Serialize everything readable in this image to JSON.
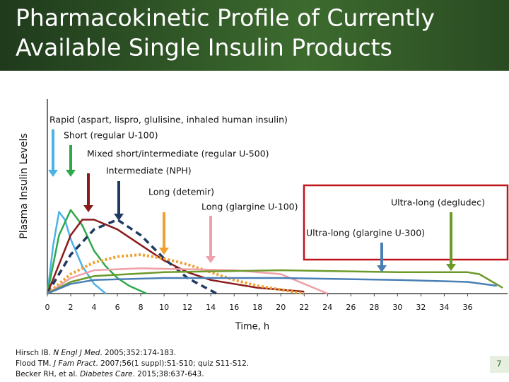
{
  "chart_data": {
    "type": "line",
    "title": [
      "Pharmacokinetic Profile of Currently",
      "Available Single Insulin Products"
    ],
    "y_label": "Plasma Insulin Levels",
    "x_label": "Time, h",
    "xlim": [
      0,
      39
    ],
    "ylim": [
      0,
      100
    ],
    "xticks": [
      0,
      2,
      4,
      6,
      8,
      10,
      12,
      14,
      16,
      18,
      20,
      22,
      24,
      26,
      28,
      30,
      32,
      34,
      36
    ],
    "series": [
      {
        "name": "Rapid (aspart, lispro, glulisine, inhaled human insulin)",
        "color": "#4cb3e6",
        "dash": "solid",
        "x": [
          0,
          0.5,
          1,
          1.5,
          2,
          3,
          4,
          5
        ],
        "values": [
          0,
          25,
          42,
          38,
          28,
          14,
          5,
          0
        ]
      },
      {
        "name": "Short (regular U-100)",
        "color": "#2ea84a",
        "dash": "solid",
        "x": [
          0,
          1,
          2,
          3,
          4,
          5,
          6,
          7,
          8.5
        ],
        "values": [
          0,
          30,
          43,
          35,
          22,
          14,
          8,
          4,
          0
        ]
      },
      {
        "name": "Mixed short/intermediate (regular U-500)",
        "color": "#8b1a1a",
        "dash": "solid",
        "x": [
          0,
          1,
          2,
          3,
          4,
          6,
          8,
          10,
          12,
          14,
          16,
          18,
          20,
          22
        ],
        "values": [
          0,
          15,
          30,
          38,
          38,
          33,
          25,
          17,
          11,
          7,
          5,
          3,
          2,
          1
        ]
      },
      {
        "name": "Intermediate (NPH)",
        "color": "#1f3a5f",
        "dash": "dashed",
        "x": [
          0,
          1,
          2,
          4,
          6,
          8,
          10,
          12,
          14.5
        ],
        "values": [
          0,
          10,
          20,
          33,
          38,
          30,
          18,
          8,
          0
        ]
      },
      {
        "name": "Long (detemir)",
        "color": "#f0a030",
        "dash": "dotted",
        "x": [
          0,
          2,
          4,
          6,
          8,
          10,
          12,
          14,
          16,
          18,
          20,
          22
        ],
        "values": [
          0,
          10,
          16,
          19,
          20,
          18,
          15,
          11,
          7,
          4,
          2,
          0
        ]
      },
      {
        "name": "Long (glargine U-100)",
        "color": "#f0a0a8",
        "dash": "solid",
        "x": [
          0,
          2,
          4,
          8,
          16,
          20,
          22,
          24
        ],
        "values": [
          0,
          8,
          12,
          13,
          12,
          10,
          5,
          0
        ]
      },
      {
        "name": "Ultra-long (degludec)",
        "color": "#6b9a2a",
        "dash": "solid",
        "x": [
          0,
          2,
          4,
          10,
          20,
          30,
          36,
          37,
          39
        ],
        "values": [
          0,
          6,
          9,
          11,
          12,
          11,
          11,
          10,
          3
        ]
      },
      {
        "name": "Ultra-long (glargine U-300)",
        "color": "#4a7fb5",
        "dash": "solid",
        "x": [
          0,
          2,
          4,
          10,
          20,
          30,
          36,
          38.5
        ],
        "values": [
          0,
          5,
          7,
          8,
          8,
          7,
          6,
          4
        ]
      }
    ]
  },
  "references": [
    [
      "Hirsch IB. ",
      "N Engl J Med",
      ". 2005;352:174-183."
    ],
    [
      "Flood TM. ",
      "J Fam Pract",
      ". 2007;56(1 suppl):S1-S10; quiz S11-S12."
    ],
    [
      "Becker RH, et al. ",
      "Diabetes Care",
      ". 2015;38:637-643."
    ]
  ],
  "slide_number": "7"
}
